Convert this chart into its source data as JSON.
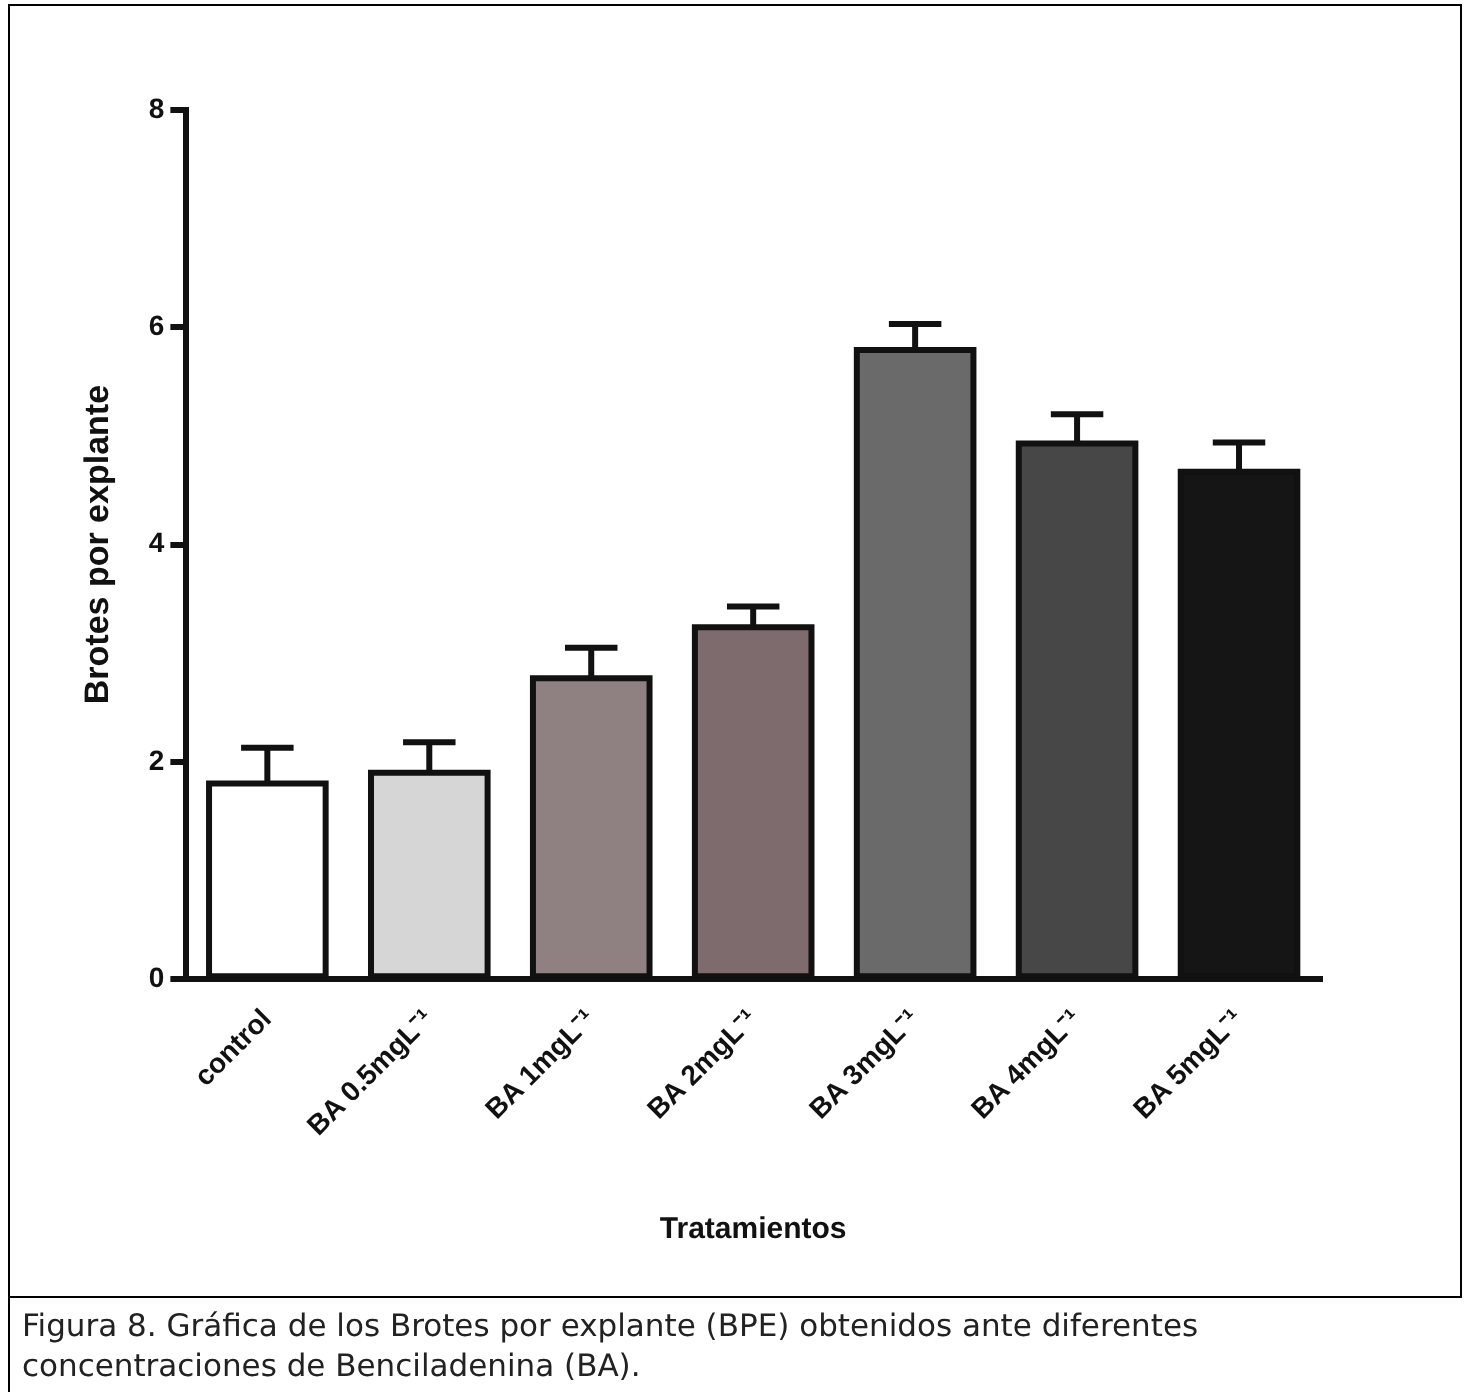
{
  "chart_data": {
    "type": "bar",
    "xlabel": "Tratamientos",
    "ylabel": "Brotes por explante",
    "categories": [
      "control",
      "BA 0.5mgL⁻¹",
      "BA 1mgL⁻¹",
      "BA 2mgL⁻¹",
      "BA 3mgL⁻¹",
      "BA 4mgL⁻¹",
      "BA 5mgL⁻¹"
    ],
    "values": [
      1.8,
      1.9,
      2.77,
      3.24,
      5.79,
      4.93,
      4.67
    ],
    "errors": [
      [
        1.8,
        2.13
      ],
      [
        1.9,
        2.18
      ],
      [
        2.77,
        3.05
      ],
      [
        3.24,
        3.43
      ],
      [
        5.79,
        6.03
      ],
      [
        4.93,
        5.2
      ],
      [
        4.67,
        4.94
      ]
    ],
    "colors": [
      "#ffffff",
      "#d6d6d6",
      "#8f8082",
      "#7e6b6d",
      "#6a6a6a",
      "#474747",
      "#151515"
    ],
    "ylim": [
      0,
      8
    ],
    "yticks": [
      0,
      2,
      4,
      6,
      8
    ],
    "grid": false,
    "legend": false,
    "annotations": [
      "Figura 8. Gráfica de los Brotes por explante (BPE) obtenidos ante diferentes concentraciones de Benciladenina (BA)."
    ]
  }
}
